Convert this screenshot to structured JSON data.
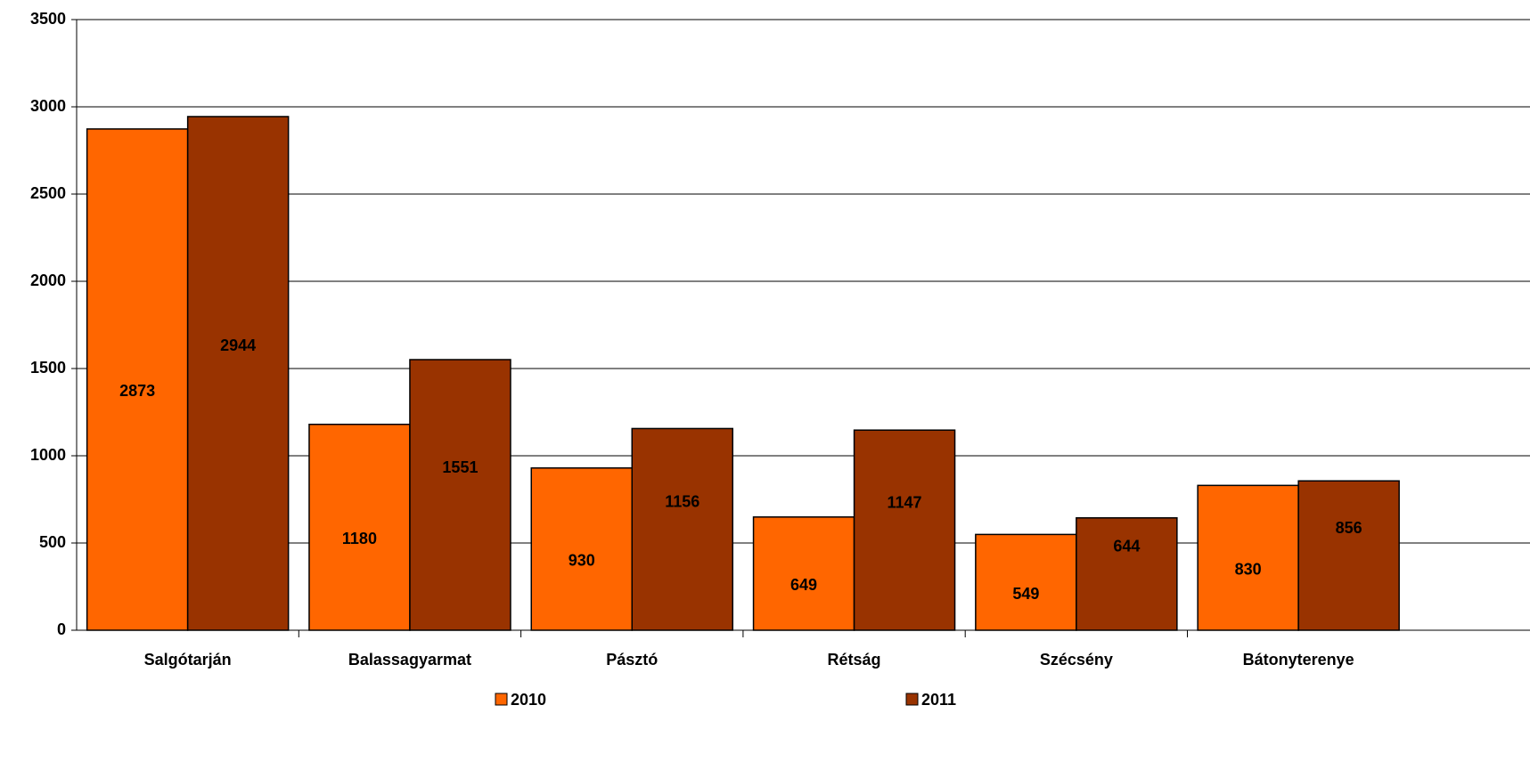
{
  "chart_data": {
    "type": "bar",
    "categories": [
      "Salgótarján",
      "Balassagyarmat",
      "Pásztó",
      "Rétság",
      "Szécsény",
      "Bátonyterenye"
    ],
    "series": [
      {
        "name": "2010",
        "color": "#ff6600",
        "values": [
          2873,
          1180,
          930,
          649,
          549,
          830
        ]
      },
      {
        "name": "2011",
        "color": "#993300",
        "values": [
          2944,
          1551,
          1156,
          1147,
          644,
          856
        ]
      }
    ],
    "ylim": [
      0,
      3500
    ],
    "yticks": [
      0,
      500,
      1000,
      1500,
      2000,
      2500,
      3000,
      3500
    ],
    "grid": true,
    "legend": "bottom"
  }
}
